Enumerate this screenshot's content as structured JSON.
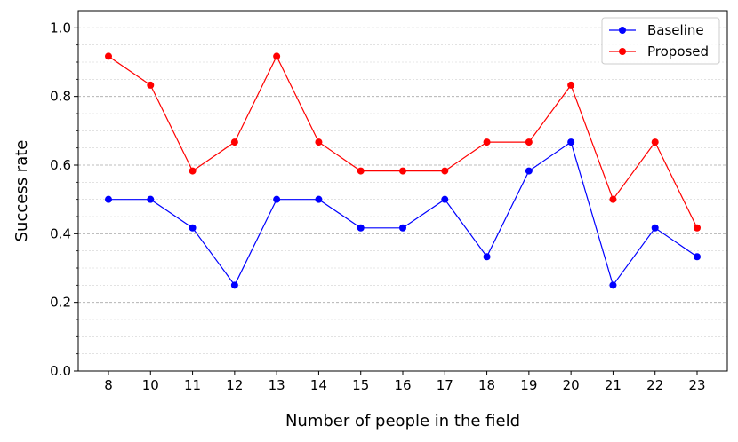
{
  "chart_data": {
    "type": "line",
    "title": "",
    "xlabel": "Number of people in the field",
    "ylabel": "Success rate",
    "categories": [
      "8",
      "10",
      "11",
      "12",
      "13",
      "14",
      "15",
      "16",
      "17",
      "18",
      "19",
      "20",
      "21",
      "22",
      "23"
    ],
    "ylim": [
      0,
      1.05
    ],
    "yticks": [
      "0.0",
      "0.2",
      "0.4",
      "0.6",
      "0.8",
      "1.0"
    ],
    "grid": "horizontal dashed",
    "legend_position": "top-right",
    "series": [
      {
        "name": "Baseline",
        "color": "#0000ff",
        "values": [
          0.5,
          0.5,
          0.417,
          0.25,
          0.5,
          0.5,
          0.417,
          0.417,
          0.5,
          0.333,
          0.583,
          0.667,
          0.25,
          0.417,
          0.333
        ]
      },
      {
        "name": "Proposed",
        "color": "#ff0000",
        "values": [
          0.917,
          0.833,
          0.583,
          0.667,
          0.917,
          0.667,
          0.583,
          0.583,
          0.583,
          0.667,
          0.667,
          0.833,
          0.5,
          0.667,
          0.417
        ]
      }
    ]
  }
}
